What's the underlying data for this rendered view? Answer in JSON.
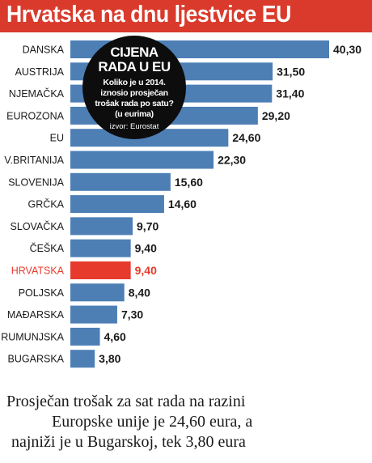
{
  "title": "Hrvatska na dnu ljestvice EU",
  "badge": {
    "title_line1": "CIJENA",
    "title_line2": "RADA U EU",
    "text": "Koliko je u 2014. iznosio prosječan trošak rada po satu? (u eurima)",
    "source": "izvor: Eurostat"
  },
  "caption": {
    "line1": "Prosječan trošak za sat rada na razini",
    "line2": "Europske unije je 24,60 eura, a",
    "line3": "najniži je u Bugarskoj, tek 3,80 eura"
  },
  "colors": {
    "bar": "#4d7fb5",
    "highlight": "#e63b2c",
    "title_bg": "#d93a2b"
  },
  "chart_data": {
    "type": "bar",
    "orientation": "horizontal",
    "categories": [
      "DANSKA",
      "AUSTRIJA",
      "NJEMAČKA",
      "EUROZONA",
      "EU",
      "V.BRITANIJA",
      "SLOVENIJA",
      "GRČKA",
      "SLOVAČKA",
      "ČEŠKA",
      "HRVATSKA",
      "POLJSKA",
      "MAĐARSKA",
      "RUMUNJSKA",
      "BUGARSKA"
    ],
    "values": [
      40.3,
      31.5,
      31.4,
      29.2,
      24.6,
      22.3,
      15.6,
      14.6,
      9.7,
      9.4,
      9.4,
      8.4,
      7.3,
      4.6,
      3.8
    ],
    "value_labels": [
      "40,30",
      "31,50",
      "31,40",
      "29,20",
      "24,60",
      "22,30",
      "15,60",
      "14,60",
      "9,70",
      "9,40",
      "9,40",
      "8,40",
      "7,30",
      "4,60",
      "3,80"
    ],
    "highlight": "HRVATSKA"
  }
}
